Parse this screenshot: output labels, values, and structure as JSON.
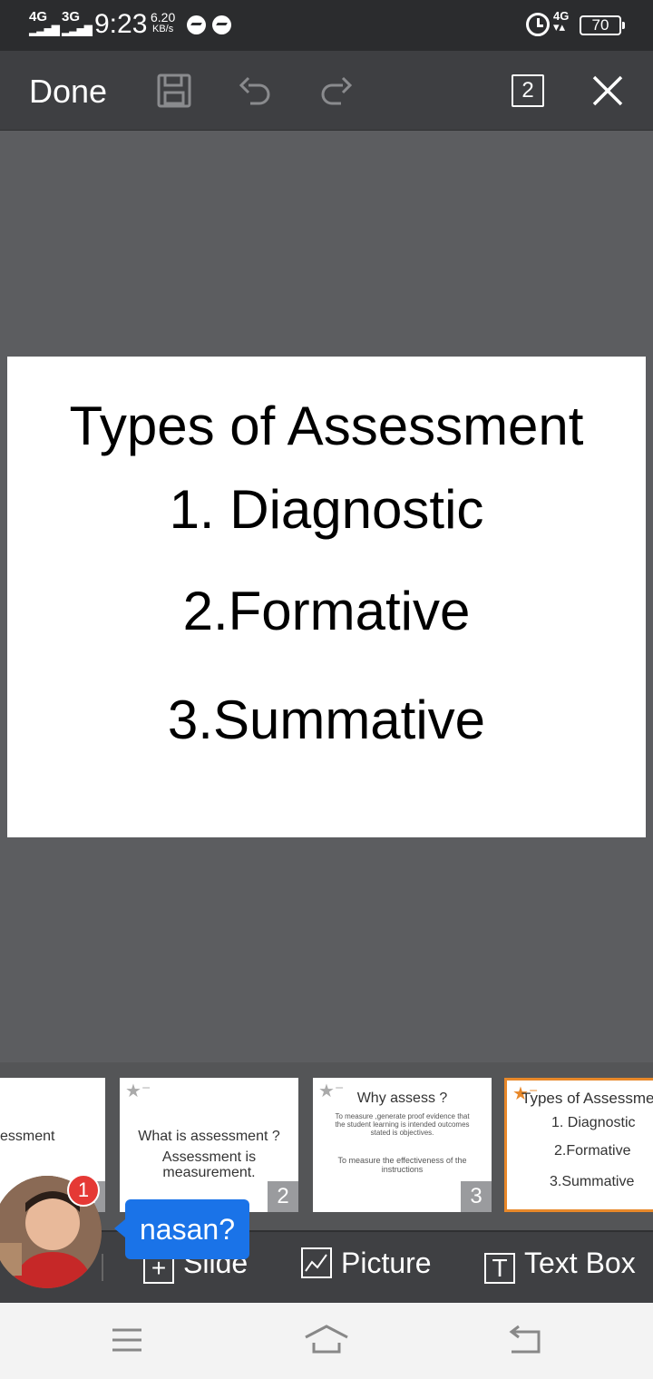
{
  "status_bar": {
    "signal1": "4G",
    "signal2": "3G",
    "time": "9:23",
    "speed_value": "6.20",
    "speed_unit": "KB/s",
    "network": "4G",
    "battery": "70"
  },
  "toolbar": {
    "done_label": "Done",
    "page_count": "2"
  },
  "slide": {
    "title": "Types of Assessment",
    "items": [
      "1. Diagnostic",
      "2.Formative",
      "3.Summative"
    ]
  },
  "thumbnails": [
    {
      "text": "essment",
      "number": "1"
    },
    {
      "title": "What is assessment ?",
      "body": "Assessment is measurement.",
      "number": "2"
    },
    {
      "title": "Why assess ?",
      "body1": "To measure ,generate proof evidence that the student learning is intended outcomes stated is objectives.",
      "body2": "To measure the effectiveness of the instructions",
      "number": "3"
    },
    {
      "title": "Types of Assessme",
      "items": [
        "1. Diagnostic",
        "2.Formative",
        "3.Summative"
      ]
    }
  ],
  "insert_bar": {
    "slide_label": "Slide",
    "picture_label": "Picture",
    "textbox_label": "Text Box"
  },
  "chat": {
    "badge_count": "1",
    "message": "nasan?"
  },
  "colors": {
    "accent": "#e8882a",
    "bubble": "#1a73e8",
    "badge": "#e53935"
  }
}
